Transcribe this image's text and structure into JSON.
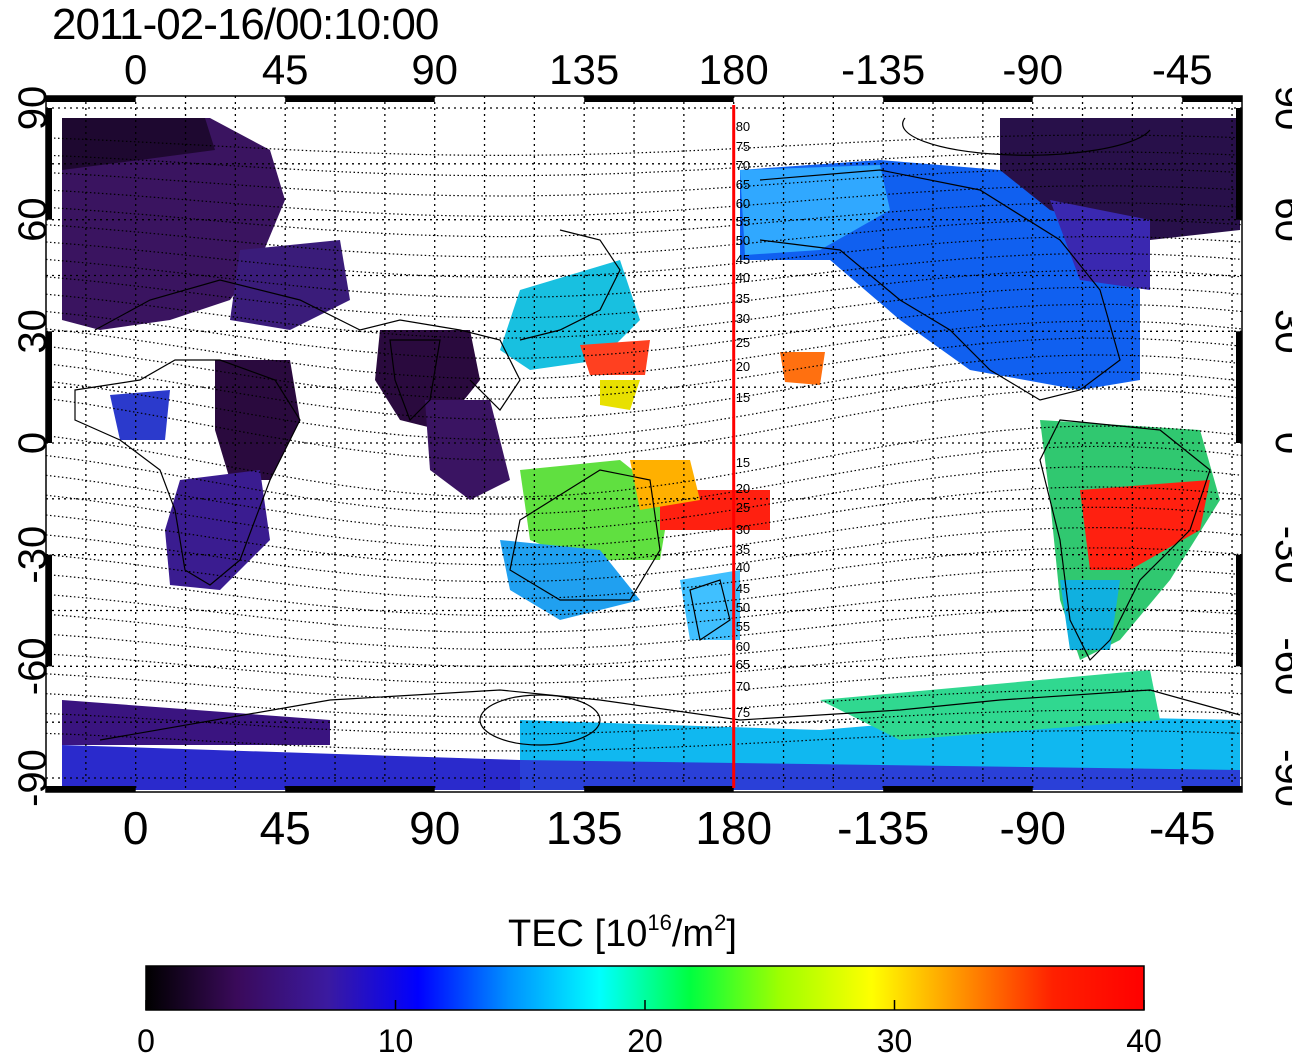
{
  "title": "2011-02-16/00:10:00",
  "map": {
    "lon_labels": [
      "0",
      "45",
      "90",
      "135",
      "180",
      "-135",
      "-90",
      "-45"
    ],
    "lat_labels_left": [
      "90",
      "60",
      "30",
      "0",
      "-30",
      "-60",
      "-90"
    ],
    "lat_labels_right": [
      "90",
      "60",
      "30",
      "0",
      "-30",
      "-60",
      "-90"
    ],
    "meridian_marker": {
      "lon": 180,
      "color": "#ff0000"
    },
    "contour_labels_north": [
      "80",
      "75",
      "70",
      "65",
      "60",
      "55",
      "50",
      "45",
      "40",
      "35",
      "30",
      "25",
      "20",
      "15"
    ],
    "contour_labels_south": [
      "15",
      "20",
      "25",
      "30",
      "35",
      "40",
      "45",
      "50",
      "55",
      "60",
      "65",
      "70",
      "75"
    ]
  },
  "colorbar": {
    "title_main": "TEC  [10",
    "title_sup1": "16",
    "title_mid": "/m",
    "title_sup2": "2",
    "title_end": "]",
    "ticks": [
      "0",
      "10",
      "20",
      "30",
      "40"
    ],
    "min": 0,
    "max": 40,
    "colors": [
      "#000000",
      "#3a0a5a",
      "#3b1aa0",
      "#0000ff",
      "#0090ff",
      "#00ffff",
      "#00ff40",
      "#a0ff00",
      "#ffff00",
      "#ff9000",
      "#ff2000",
      "#ff0000"
    ]
  }
}
